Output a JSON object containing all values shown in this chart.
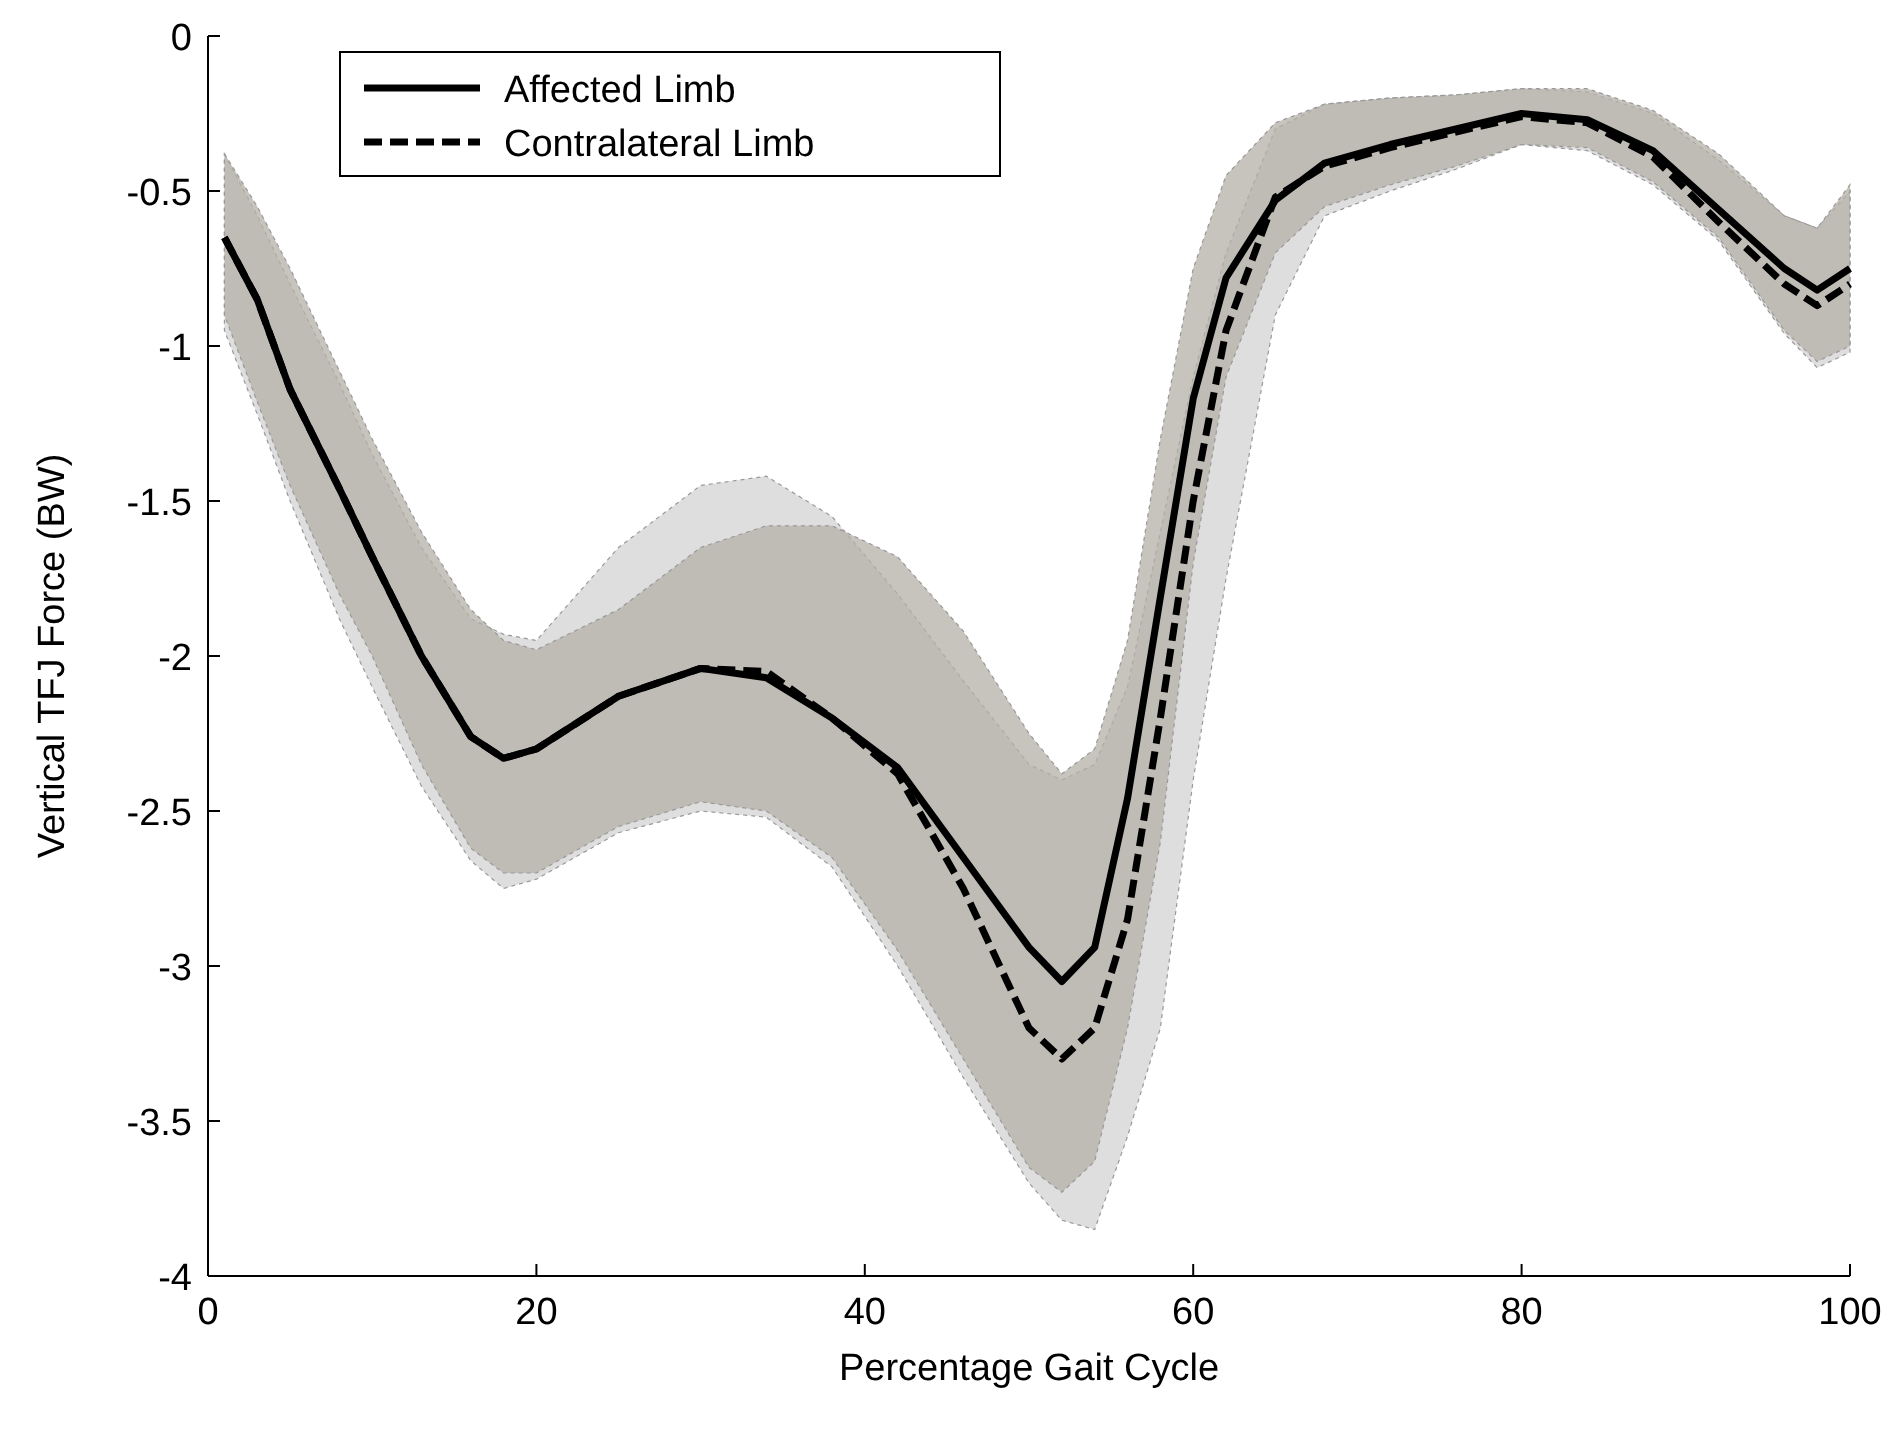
{
  "chart_data": {
    "type": "line",
    "xlabel": "Percentage Gait Cycle",
    "ylabel": "Vertical TFJ Force (BW)",
    "x": [
      1,
      3,
      5,
      8,
      10,
      13,
      16,
      18,
      20,
      25,
      30,
      34,
      38,
      42,
      46,
      50,
      52,
      54,
      56,
      58,
      60,
      62,
      65,
      68,
      72,
      76,
      80,
      84,
      88,
      92,
      96,
      98,
      100
    ],
    "series": [
      {
        "name": "Contralateral Limb",
        "color": "#000000",
        "line_style": "dashed",
        "values": [
          -0.65,
          -0.85,
          -1.14,
          -1.46,
          -1.68,
          -2.0,
          -2.26,
          -2.33,
          -2.3,
          -2.13,
          -2.04,
          -2.05,
          -2.2,
          -2.38,
          -2.75,
          -3.2,
          -3.3,
          -3.2,
          -2.85,
          -2.2,
          -1.5,
          -0.95,
          -0.52,
          -0.42,
          -0.36,
          -0.31,
          -0.26,
          -0.28,
          -0.39,
          -0.6,
          -0.8,
          -0.87,
          -0.8
        ],
        "lower": [
          -0.95,
          -1.22,
          -1.5,
          -1.88,
          -2.1,
          -2.42,
          -2.66,
          -2.75,
          -2.72,
          -2.57,
          -2.5,
          -2.52,
          -2.68,
          -3.0,
          -3.36,
          -3.7,
          -3.82,
          -3.85,
          -3.55,
          -3.2,
          -2.4,
          -1.75,
          -0.9,
          -0.58,
          -0.5,
          -0.43,
          -0.35,
          -0.37,
          -0.48,
          -0.66,
          -0.96,
          -1.07,
          -1.02
        ],
        "upper": [
          -0.38,
          -0.58,
          -0.8,
          -1.12,
          -1.35,
          -1.65,
          -1.88,
          -1.93,
          -1.95,
          -1.65,
          -1.45,
          -1.42,
          -1.55,
          -1.8,
          -2.08,
          -2.35,
          -2.4,
          -2.35,
          -2.1,
          -1.6,
          -1.1,
          -0.7,
          -0.3,
          -0.22,
          -0.2,
          -0.19,
          -0.17,
          -0.18,
          -0.25,
          -0.4,
          -0.58,
          -0.62,
          -0.5
        ]
      },
      {
        "name": "Affected Limb",
        "color": "#000000",
        "line_style": "solid",
        "values": [
          -0.65,
          -0.85,
          -1.14,
          -1.46,
          -1.68,
          -2.0,
          -2.26,
          -2.33,
          -2.3,
          -2.13,
          -2.04,
          -2.07,
          -2.2,
          -2.36,
          -2.65,
          -2.94,
          -3.05,
          -2.94,
          -2.46,
          -1.81,
          -1.17,
          -0.78,
          -0.53,
          -0.41,
          -0.35,
          -0.3,
          -0.25,
          -0.27,
          -0.37,
          -0.56,
          -0.75,
          -0.82,
          -0.75
        ],
        "lower": [
          -0.9,
          -1.18,
          -1.45,
          -1.8,
          -2.0,
          -2.35,
          -2.62,
          -2.7,
          -2.7,
          -2.55,
          -2.47,
          -2.5,
          -2.65,
          -2.95,
          -3.3,
          -3.65,
          -3.73,
          -3.63,
          -3.2,
          -2.6,
          -1.7,
          -1.1,
          -0.7,
          -0.55,
          -0.48,
          -0.42,
          -0.35,
          -0.36,
          -0.47,
          -0.65,
          -0.95,
          -1.05,
          -1.0
        ],
        "upper": [
          -0.38,
          -0.55,
          -0.75,
          -1.08,
          -1.3,
          -1.6,
          -1.85,
          -1.95,
          -1.98,
          -1.85,
          -1.65,
          -1.58,
          -1.58,
          -1.68,
          -1.92,
          -2.25,
          -2.38,
          -2.3,
          -1.95,
          -1.3,
          -0.75,
          -0.45,
          -0.28,
          -0.22,
          -0.2,
          -0.19,
          -0.17,
          -0.17,
          -0.24,
          -0.38,
          -0.58,
          -0.62,
          -0.48
        ]
      }
    ],
    "xlim": [
      0,
      100
    ],
    "xticks": [
      0,
      20,
      40,
      60,
      80,
      100
    ],
    "ylim": [
      -4,
      0
    ],
    "yticks": [
      -4,
      -3.5,
      -3,
      -2.5,
      -2,
      -1.5,
      -1,
      -0.5,
      0
    ],
    "grid": false,
    "legend": "top left"
  }
}
